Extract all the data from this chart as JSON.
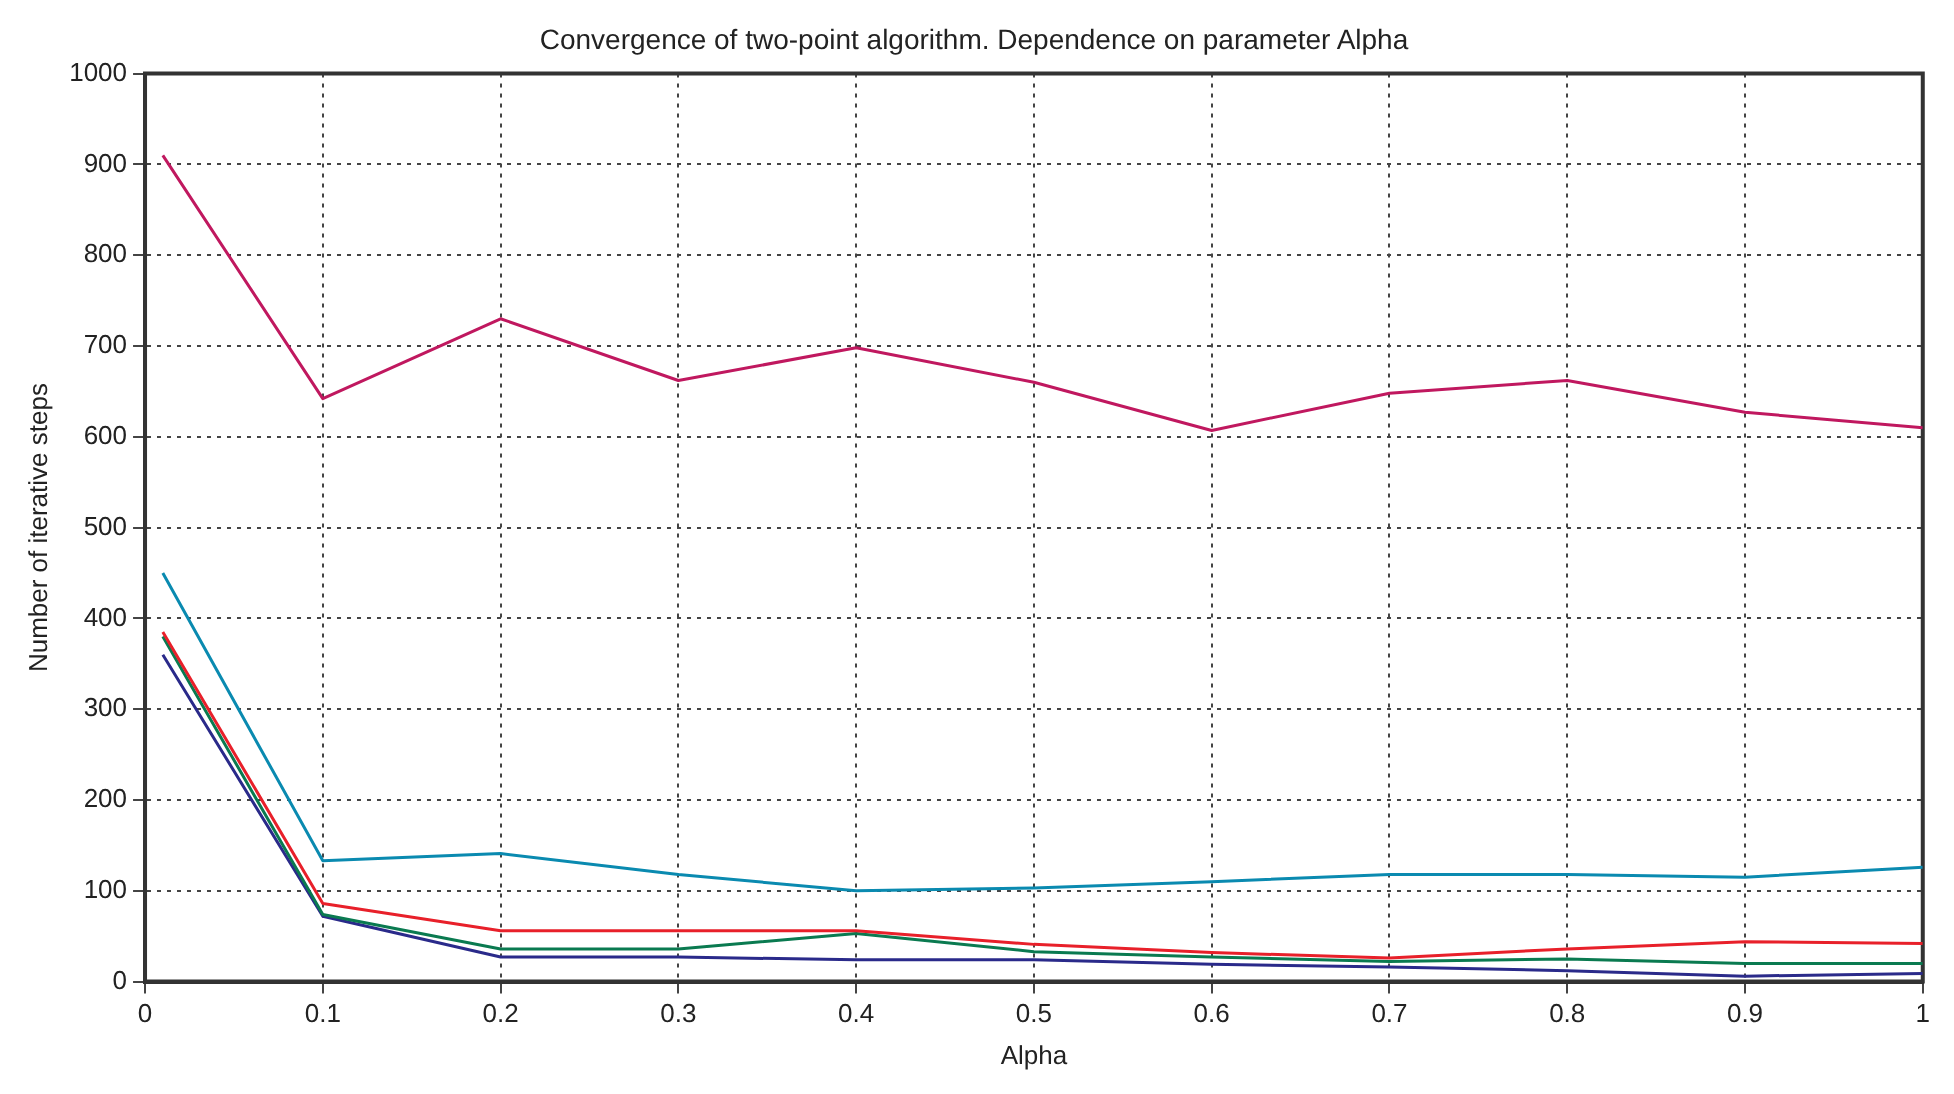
{
  "chart_data": {
    "type": "line",
    "title": "Convergence of two-point algorithm. Dependence on parameter Alpha",
    "xlabel": "Alpha",
    "ylabel": "Number of iterative steps",
    "x": [
      0.01,
      0.1,
      0.2,
      0.3,
      0.4,
      0.5,
      0.6,
      0.7,
      0.8,
      0.9,
      1
    ],
    "series": [
      {
        "color": "#c0185f",
        "values": [
          910,
          642,
          730,
          662,
          698,
          660,
          607,
          648,
          662,
          627,
          610
        ]
      },
      {
        "color": "#0a8ab0",
        "values": [
          450,
          133,
          141,
          118,
          100,
          103,
          110,
          118,
          118,
          115,
          126
        ]
      },
      {
        "color": "#e8202a",
        "values": [
          385,
          86,
          56,
          56,
          56,
          41,
          32,
          26,
          36,
          44,
          42
        ]
      },
      {
        "color": "#0a7a50",
        "values": [
          380,
          74,
          36,
          36,
          53,
          33,
          27,
          22,
          25,
          20,
          20
        ]
      },
      {
        "color": "#2a2a8a",
        "values": [
          360,
          72,
          27,
          27,
          24,
          24,
          19,
          16,
          12,
          6,
          9
        ]
      }
    ],
    "xlim": [
      0,
      1
    ],
    "xticks": [
      0,
      0.1,
      0.2,
      0.3,
      0.4,
      0.5,
      0.6,
      0.7,
      0.8,
      0.9,
      1
    ],
    "ylim": [
      0,
      1000
    ],
    "yticks": [
      0,
      100,
      200,
      300,
      400,
      500,
      600,
      700,
      800,
      900,
      1000
    ],
    "grid": true,
    "legend": false,
    "marker": "none",
    "line_style": "solid"
  }
}
